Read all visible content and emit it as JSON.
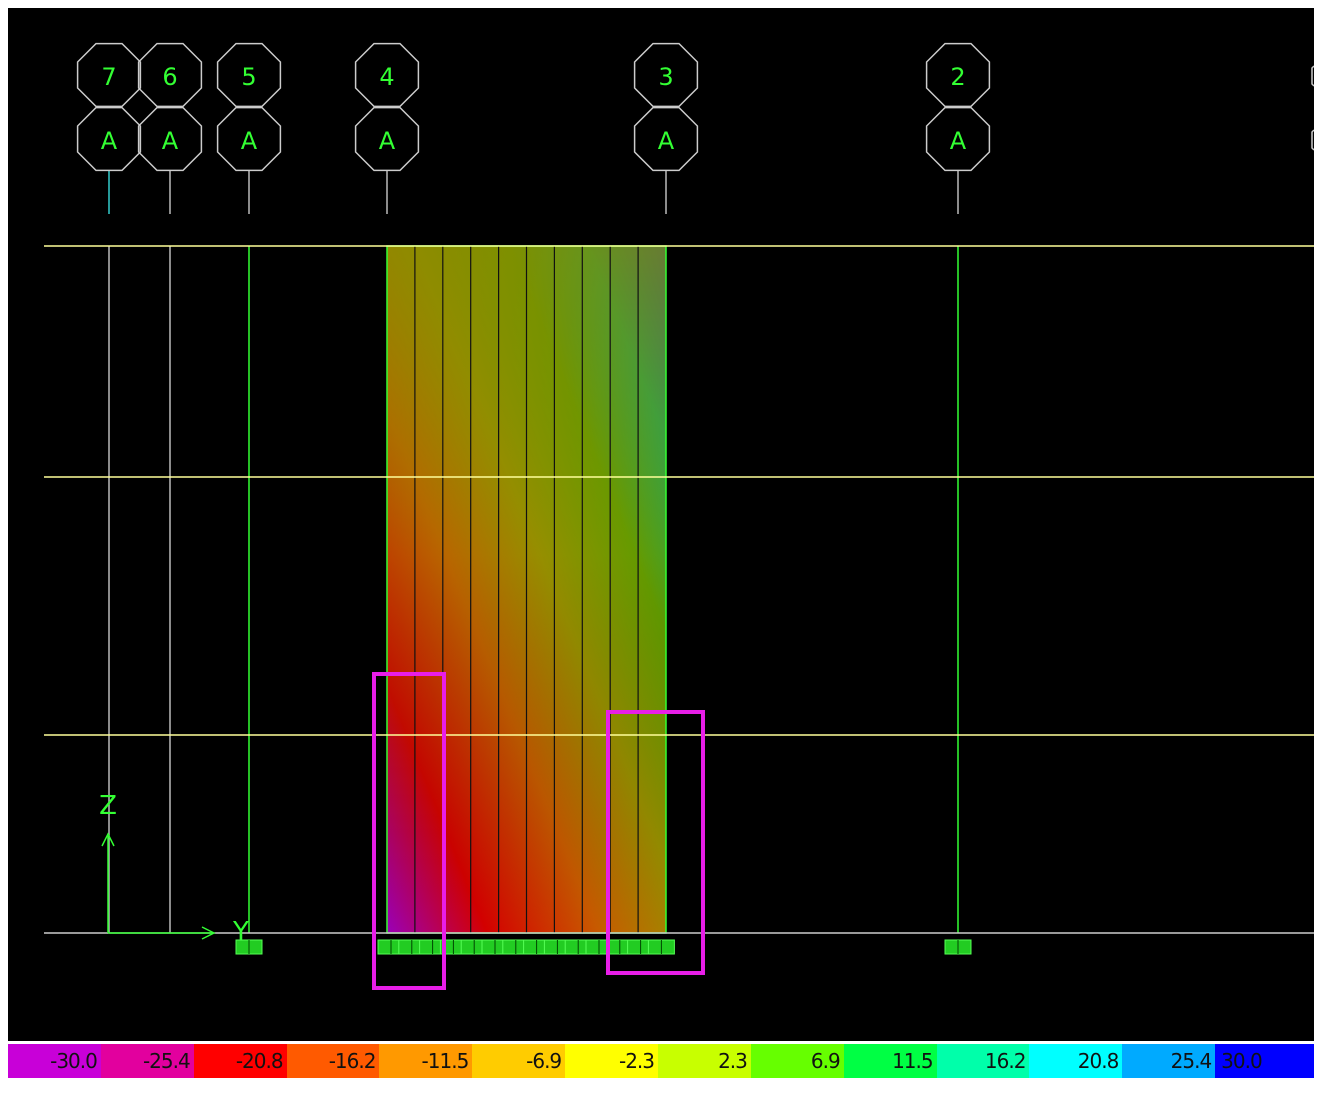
{
  "grid_bubbles": [
    {
      "number": "7",
      "letter": "A"
    },
    {
      "number": "6",
      "letter": "A"
    },
    {
      "number": "5",
      "letter": "A"
    },
    {
      "number": "4",
      "letter": "A"
    },
    {
      "number": "3",
      "letter": "A"
    },
    {
      "number": "2",
      "letter": "A"
    }
  ],
  "axes": {
    "z_label": "Z",
    "y_label": "Y"
  },
  "legend": {
    "values": [
      "-30.0",
      "-25.4",
      "-20.8",
      "-16.2",
      "-11.5",
      "-6.9",
      "-2.3",
      "2.3",
      "6.9",
      "11.5",
      "16.2",
      "20.8",
      "25.4",
      "30.0"
    ],
    "colors": [
      "#c800d8",
      "#e2009e",
      "#ff0000",
      "#ff5a00",
      "#ff9900",
      "#ffcc00",
      "#ffff00",
      "#c8ff00",
      "#66ff00",
      "#00ff44",
      "#00ffaa",
      "#00ffff",
      "#00aaff",
      "#0000ff"
    ]
  },
  "colors": {
    "background": "#000000",
    "story_line": "#ffff9a",
    "frame_line": "#33ff33",
    "grid_line": "#bbbbbb",
    "highlight": "#e81ee8",
    "bubble_text": "#33ff33"
  }
}
